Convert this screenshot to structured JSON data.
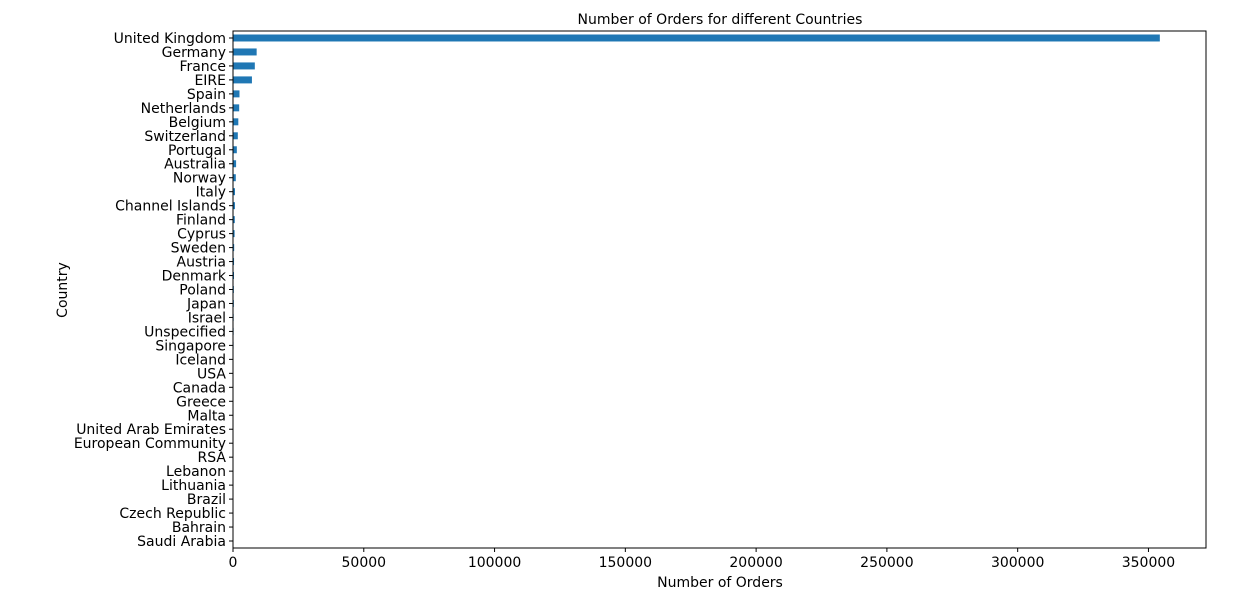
{
  "chart_data": {
    "type": "bar",
    "orientation": "horizontal",
    "title": "Number of Orders for different Countries",
    "xlabel": "Number of Orders",
    "ylabel": "Country",
    "xlim": [
      0,
      372000
    ],
    "xticks": [
      0,
      50000,
      100000,
      150000,
      200000,
      250000,
      300000,
      350000
    ],
    "grid": false,
    "bar_color": "#1f77b4",
    "categories": [
      "United Kingdom",
      "Germany",
      "France",
      "EIRE",
      "Spain",
      "Netherlands",
      "Belgium",
      "Switzerland",
      "Portugal",
      "Australia",
      "Norway",
      "Italy",
      "Channel Islands",
      "Finland",
      "Cyprus",
      "Sweden",
      "Austria",
      "Denmark",
      "Poland",
      "Japan",
      "Israel",
      "Unspecified",
      "Singapore",
      "Iceland",
      "USA",
      "Canada",
      "Greece",
      "Malta",
      "United Arab Emirates",
      "European Community",
      "RSA",
      "Lebanon",
      "Lithuania",
      "Brazil",
      "Czech Republic",
      "Bahrain",
      "Saudi Arabia"
    ],
    "values": [
      354345,
      9042,
      8342,
      7238,
      2485,
      2363,
      2031,
      1842,
      1462,
      1185,
      1072,
      758,
      748,
      685,
      614,
      451,
      398,
      380,
      330,
      321,
      250,
      244,
      222,
      182,
      179,
      151,
      145,
      112,
      68,
      60,
      57,
      45,
      35,
      32,
      25,
      17,
      9
    ]
  }
}
